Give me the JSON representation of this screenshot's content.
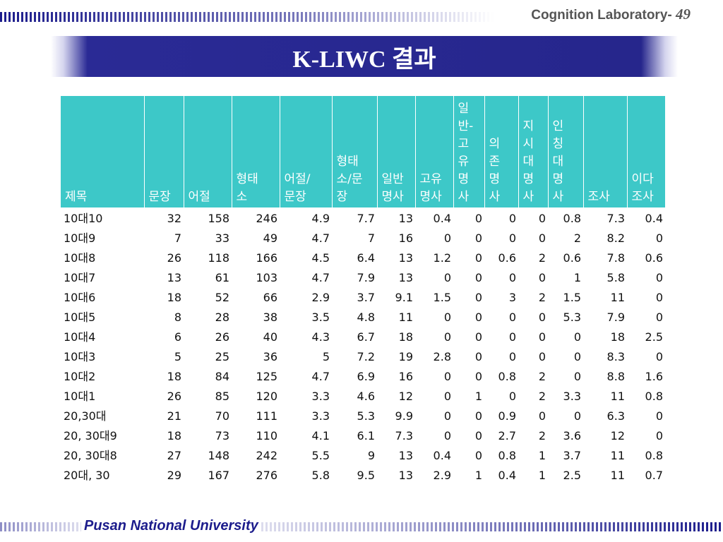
{
  "header": {
    "lab": "Cognition Laboratory-",
    "page": "49"
  },
  "title": "K-LIWC 결과",
  "table": {
    "columns": [
      "제목",
      "문장",
      "어절",
      "형태\n소",
      "어절/\n문장",
      "형태\n소/문\n장",
      "일반\n명사",
      "고유\n명사",
      "일\n반-\n고\n유\n명\n사",
      "의\n존\n명\n사",
      "지\n시\n대\n명\n사",
      "인\n칭\n대\n명\n사",
      "조사",
      "이다\n조사"
    ],
    "rows": [
      [
        "10대10",
        "32",
        "158",
        "246",
        "4.9",
        "7.7",
        "13",
        "0.4",
        "0",
        "0",
        "0",
        "0.8",
        "7.3",
        "0.4"
      ],
      [
        "10대9",
        "7",
        "33",
        "49",
        "4.7",
        "7",
        "16",
        "0",
        "0",
        "0",
        "0",
        "2",
        "8.2",
        "0"
      ],
      [
        "10대8",
        "26",
        "118",
        "166",
        "4.5",
        "6.4",
        "13",
        "1.2",
        "0",
        "0.6",
        "2",
        "0.6",
        "7.8",
        "0.6"
      ],
      [
        "10대7",
        "13",
        "61",
        "103",
        "4.7",
        "7.9",
        "13",
        "0",
        "0",
        "0",
        "0",
        "1",
        "5.8",
        "0"
      ],
      [
        "10대6",
        "18",
        "52",
        "66",
        "2.9",
        "3.7",
        "9.1",
        "1.5",
        "0",
        "3",
        "2",
        "1.5",
        "11",
        "0"
      ],
      [
        "10대5",
        "8",
        "28",
        "38",
        "3.5",
        "4.8",
        "11",
        "0",
        "0",
        "0",
        "0",
        "5.3",
        "7.9",
        "0"
      ],
      [
        "10대4",
        "6",
        "26",
        "40",
        "4.3",
        "6.7",
        "18",
        "0",
        "0",
        "0",
        "0",
        "0",
        "18",
        "2.5"
      ],
      [
        "10대3",
        "5",
        "25",
        "36",
        "5",
        "7.2",
        "19",
        "2.8",
        "0",
        "0",
        "0",
        "0",
        "8.3",
        "0"
      ],
      [
        "10대2",
        "18",
        "84",
        "125",
        "4.7",
        "6.9",
        "16",
        "0",
        "0",
        "0.8",
        "2",
        "0",
        "8.8",
        "1.6"
      ],
      [
        "10대1",
        "26",
        "85",
        "120",
        "3.3",
        "4.6",
        "12",
        "0",
        "1",
        "0",
        "2",
        "3.3",
        "11",
        "0.8"
      ],
      [
        "20,30대",
        "21",
        "70",
        "111",
        "3.3",
        "5.3",
        "9.9",
        "0",
        "0",
        "0.9",
        "0",
        "0",
        "6.3",
        "0"
      ],
      [
        "20, 30대9",
        "18",
        "73",
        "110",
        "4.1",
        "6.1",
        "7.3",
        "0",
        "0",
        "2.7",
        "2",
        "3.6",
        "12",
        "0"
      ],
      [
        "20, 30대8",
        "27",
        "148",
        "242",
        "5.5",
        "9",
        "13",
        "0.4",
        "0",
        "0.8",
        "1",
        "3.7",
        "11",
        "0.8"
      ],
      [
        "20대, 30",
        "29",
        "167",
        "276",
        "5.8",
        "9.5",
        "13",
        "2.9",
        "1",
        "0.4",
        "1",
        "2.5",
        "11",
        "0.7"
      ]
    ]
  },
  "footer": "Pusan National University"
}
